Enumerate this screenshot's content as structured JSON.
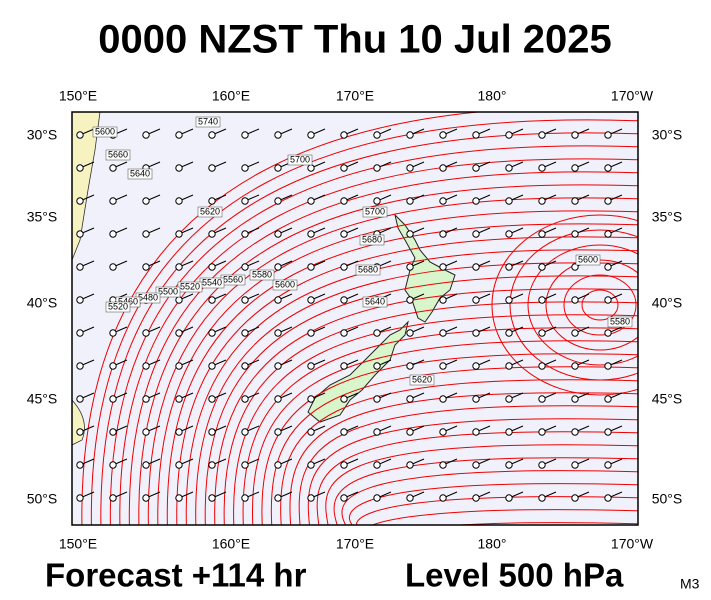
{
  "title": "0000 NZST Thu 10 Jul 2025",
  "footer": {
    "forecast": "Forecast +114 hr",
    "level": "Level 500 hPa",
    "model": "M3"
  },
  "map": {
    "top_labels": [
      "150°E",
      "160°E",
      "170°E",
      "180°",
      "170°W"
    ],
    "bottom_labels": [
      "150°E",
      "160°E",
      "170°E",
      "180°",
      "170°W"
    ],
    "left_labels": [
      "30°S",
      "35°S",
      "40°S",
      "45°S",
      "50°S"
    ],
    "right_labels": [
      "30°S",
      "35°S",
      "40°S",
      "45°S",
      "50°S"
    ],
    "contour_labels": [
      "5740",
      "5700",
      "5680",
      "5660",
      "5640",
      "5700",
      "5620",
      "5600",
      "5580",
      "5560",
      "5540",
      "5520",
      "5500",
      "5480",
      "5460",
      "5680",
      "5640",
      "5600",
      "5620",
      "5580",
      "5520",
      "5600"
    ]
  }
}
